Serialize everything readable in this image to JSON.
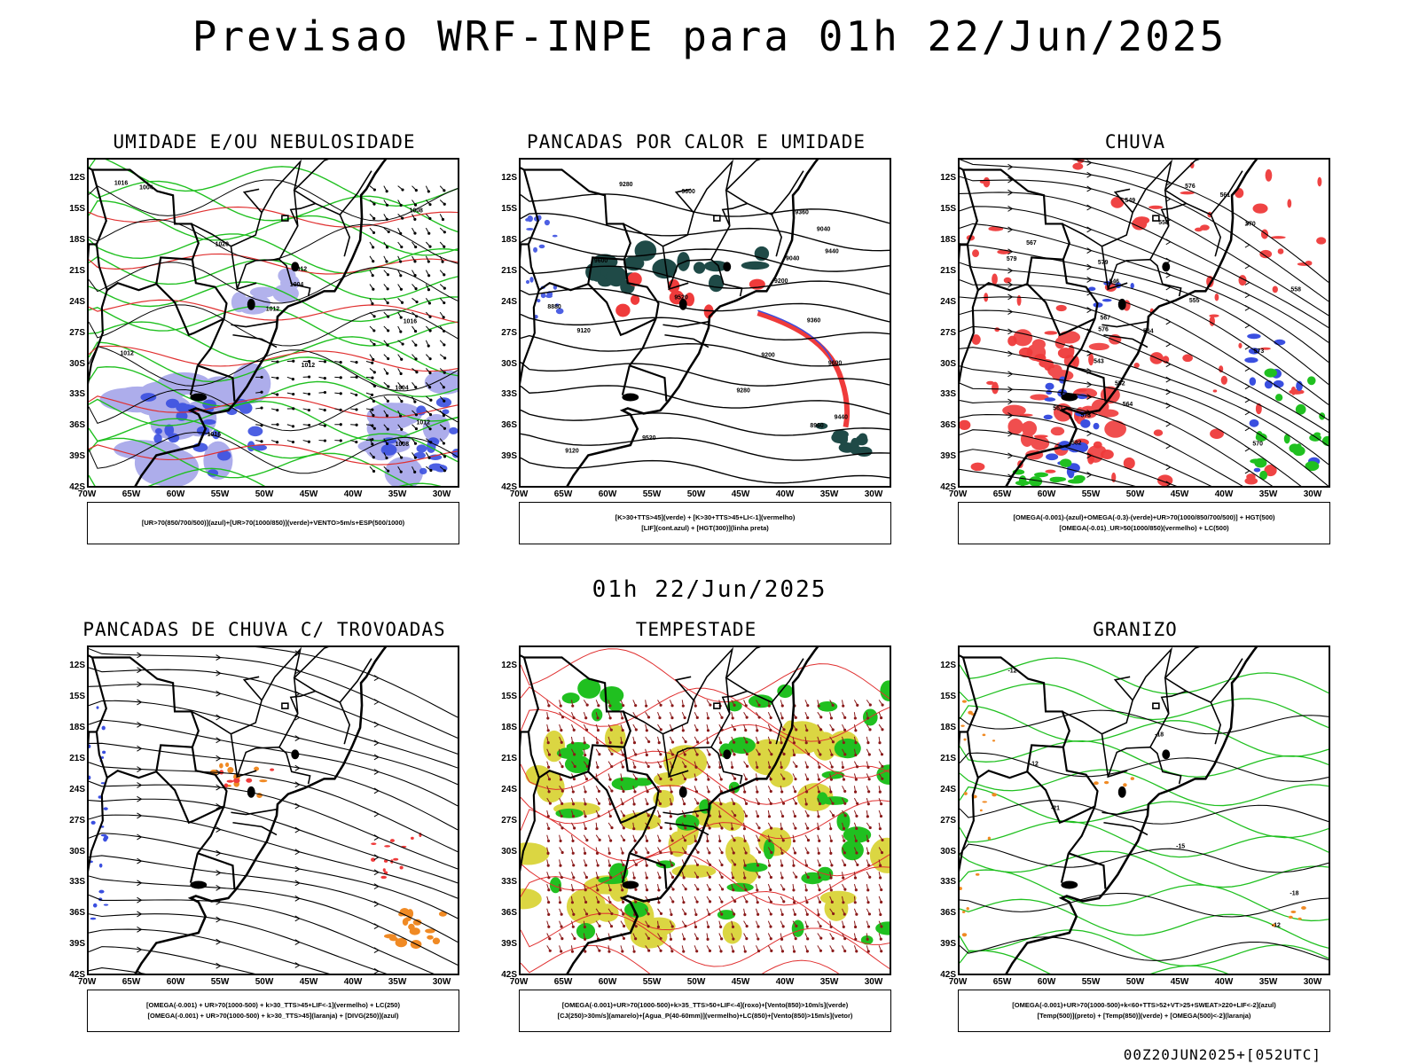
{
  "title": "Previsao WRF-INPE  para 01h 22/Jun/2025",
  "subtitle": "01h 22/Jun/2025",
  "footer": "00Z20JUN2025+[052UTC]",
  "axes": {
    "lat_labels": [
      "12S",
      "15S",
      "18S",
      "21S",
      "24S",
      "27S",
      "30S",
      "33S",
      "36S",
      "39S",
      "42S"
    ],
    "lon_labels": [
      "70W",
      "65W",
      "60W",
      "55W",
      "50W",
      "45W",
      "40W",
      "35W",
      "30W"
    ],
    "lat_range": [
      -42,
      -10
    ],
    "lon_range": [
      -70,
      -28
    ]
  },
  "colors": {
    "blue": "#3a4fe0",
    "green": "#20c020",
    "red": "#ef3b3b",
    "orange": "#f08a24",
    "yellow": "#d8d22e",
    "darkgreen": "#1f4a47",
    "lavender": "#9f9fe8",
    "contour_red": "#e03030",
    "black": "#000000"
  },
  "panels": [
    {
      "title": "UMIDADE E/OU NEBULOSIDADE",
      "legend": [
        "[UR>70(850/700/500)](azul)+[UR>70(1000/850)](verde)+VENTO>5m/s+ESP(500/1000)"
      ],
      "labels": [
        "1016",
        "1012",
        "1012",
        "1016",
        "1020",
        "1016",
        "1012",
        "1008",
        "1012",
        "1004",
        "1004",
        "1004",
        "1012",
        "1008"
      ]
    },
    {
      "title": "PANCADAS POR CALOR E UMIDADE",
      "legend": [
        "[K>30+TTS>45](verde)  +  [K>30+TTS>45+LI<-1](vermelho)",
        "[LIF](cont.azul)  +  [HGT(300)](linha preta)"
      ],
      "labels": [
        "9600",
        "9600",
        "9600",
        "9520",
        "9440",
        "9360",
        "9440",
        "9360",
        "9520",
        "9280",
        "9280",
        "9200",
        "9200",
        "9120",
        "9040",
        "9120",
        "8960",
        "9040",
        "8880"
      ]
    },
    {
      "title": "CHUVA",
      "legend": [
        "[OMEGA(-0.001)-(azul)+OMEGA(-0.3)-(verde)+UR>70(1000/850/700/500)]  +  HGT(500)",
        "[OMEGA(-0.01)_UR>50(1000/850)(vermelho)  +  LC(500)"
      ],
      "labels": [
        "576",
        "579",
        "573",
        "570",
        "567",
        "564",
        "561",
        "558",
        "555",
        "552",
        "549",
        "546",
        "543",
        "582",
        "579",
        "576",
        "573",
        "570",
        "567",
        "564",
        "561",
        "558"
      ]
    },
    {
      "title": "PANCADAS DE CHUVA C/ TROVOADAS",
      "legend": [
        "[OMEGA(-0.001)  +  UR>70(1000-500)  +  k>30_TTS>45+LIF<-1](vermelho)  +  LC(250)",
        "[OMEGA(-0.001)  +  UR>70(1000-500)  +  k>30_TTS>45](laranja)  +  [DIVG(250)](azul)"
      ],
      "labels": []
    },
    {
      "title": "TEMPESTADE",
      "legend": [
        "[OMEGA(-0.001)+UR>70(1000-500)+k>35_TTS>50+LIF<-4](roxo)+[Vento(850)>10m/s](verde)",
        "[CJ(250)>30m/s](amarelo)+[Agua_P(40-60mm)](vermelho)+LC(850)+[Vento(850)>15m/s](vetor)"
      ],
      "labels": []
    },
    {
      "title": "GRANIZO",
      "legend": [
        "[OMEGA(-0.001)+UR>70(1000-500)+k<60+TTS>52+VT>25+SWEAT>220+LIF<-2](azul)",
        "[Temp(500)](preto)  +  [Temp(850)](verde)  +  [OMEGA(500)<-2](laranja)"
      ],
      "labels": [
        "-12",
        "-12",
        "-15",
        "-12",
        "-18",
        "-21",
        "-18"
      ]
    }
  ]
}
